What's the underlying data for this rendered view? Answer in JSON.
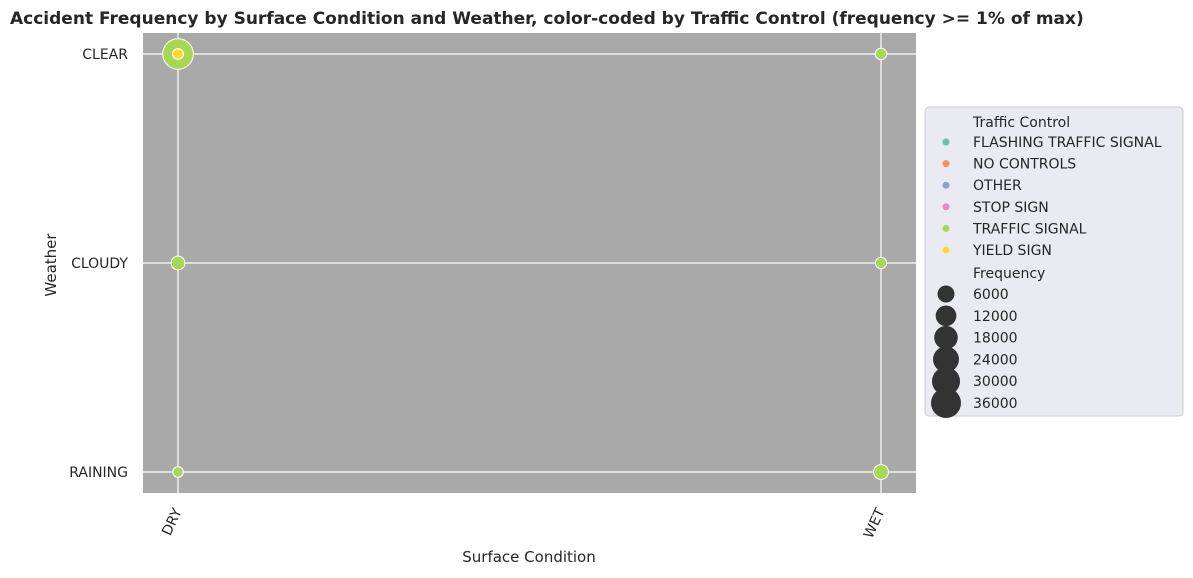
{
  "chart_data": {
    "type": "scatter",
    "title": "Accident Frequency by Surface Condition and Weather, color-coded by Traffic Control (frequency >= 1% of max)",
    "xlabel": "Surface Condition",
    "ylabel": "Weather",
    "x_categories": [
      "DRY",
      "WET"
    ],
    "y_categories": [
      "CLEAR",
      "CLOUDY",
      "RAINING"
    ],
    "grid": true,
    "legend_placement": "right",
    "colors": {
      "plot_background": "#a9a9a9",
      "legend_background": "#eaeaf2",
      "grid": "#ffffff",
      "size_marker": "#333333"
    },
    "hue_legend": {
      "title": "Traffic Control",
      "entries": [
        {
          "name": "FLASHING TRAFFIC SIGNAL",
          "color": "#66c2a5"
        },
        {
          "name": "NO CONTROLS",
          "color": "#fc8d62"
        },
        {
          "name": "OTHER",
          "color": "#8da0cb"
        },
        {
          "name": "STOP SIGN",
          "color": "#e78ac3"
        },
        {
          "name": "TRAFFIC SIGNAL",
          "color": "#a6d854"
        },
        {
          "name": "YIELD SIGN",
          "color": "#ffd92f"
        }
      ]
    },
    "size_legend": {
      "title": "Frequency",
      "entries": [
        {
          "label": "6000",
          "value": 6000
        },
        {
          "label": "12000",
          "value": 12000
        },
        {
          "label": "18000",
          "value": 18000
        },
        {
          "label": "24000",
          "value": 24000
        },
        {
          "label": "30000",
          "value": 30000
        },
        {
          "label": "36000",
          "value": 36000
        }
      ]
    },
    "points": [
      {
        "surface": "DRY",
        "weather": "CLEAR",
        "control": "TRAFFIC SIGNAL",
        "frequency": 38000
      },
      {
        "surface": "DRY",
        "weather": "CLEAR",
        "control": "YIELD SIGN",
        "frequency": 600
      },
      {
        "surface": "DRY",
        "weather": "CLOUDY",
        "control": "TRAFFIC SIGNAL",
        "frequency": 2500
      },
      {
        "surface": "DRY",
        "weather": "RAINING",
        "control": "TRAFFIC SIGNAL",
        "frequency": 500
      },
      {
        "surface": "WET",
        "weather": "CLEAR",
        "control": "TRAFFIC SIGNAL",
        "frequency": 900
      },
      {
        "surface": "WET",
        "weather": "CLOUDY",
        "control": "TRAFFIC SIGNAL",
        "frequency": 800
      },
      {
        "surface": "WET",
        "weather": "RAINING",
        "control": "TRAFFIC SIGNAL",
        "frequency": 3500
      }
    ]
  }
}
